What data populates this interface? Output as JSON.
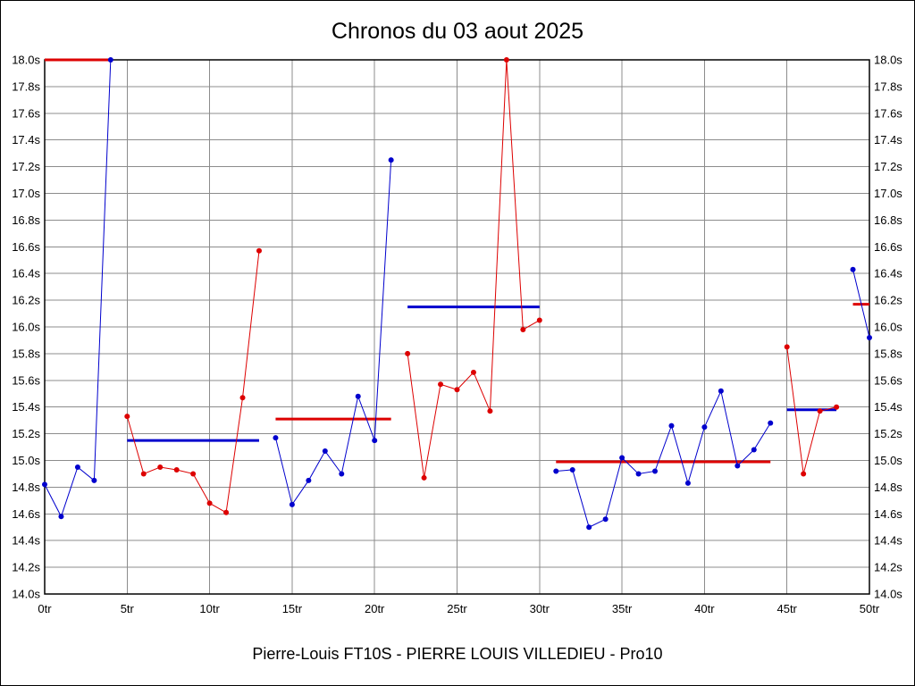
{
  "title": "Chronos du 03 aout 2025",
  "footer": "Pierre-Louis FT10S - PIERRE LOUIS VILLEDIEU - Pro10",
  "chart_data": {
    "type": "line",
    "title": "Chronos du 03 aout 2025",
    "xlabel": "",
    "ylabel": "",
    "x_unit_suffix": "tr",
    "y_unit_suffix": "s",
    "xlim": [
      0,
      50
    ],
    "ylim": [
      14.0,
      18.0
    ],
    "x_tick_step": 5,
    "y_tick_step": 0.2,
    "grid": true,
    "y_labels_both_sides": true,
    "legend_position": "none",
    "colors": {
      "blue": "#0000cd",
      "red": "#dd0000",
      "grid": "#8c8c8c",
      "axis": "#000000"
    },
    "stints": [
      {
        "color": "blue",
        "start_lap": 0,
        "laps": [
          14.82,
          14.58,
          14.95,
          14.85,
          18.0
        ],
        "avg_line": {
          "color": "red",
          "value": 18.0
        }
      },
      {
        "color": "red",
        "start_lap": 5,
        "laps": [
          15.33,
          14.9,
          14.95,
          14.93,
          14.9,
          14.68,
          14.61,
          15.47,
          16.57
        ],
        "avg_line": {
          "color": "blue",
          "value": 15.15
        }
      },
      {
        "color": "blue",
        "start_lap": 14,
        "laps": [
          15.17,
          14.67,
          14.85,
          15.07,
          14.9,
          15.48,
          15.15,
          17.25
        ],
        "avg_line": {
          "color": "red",
          "value": 15.31
        }
      },
      {
        "color": "red",
        "start_lap": 22,
        "laps": [
          15.8,
          14.87,
          15.57,
          15.53,
          15.66,
          15.37,
          18.0,
          15.98,
          16.05
        ],
        "avg_line": {
          "color": "blue",
          "value": 16.15
        }
      },
      {
        "color": "blue",
        "start_lap": 31,
        "laps": [
          14.92,
          14.93,
          14.5,
          14.56,
          15.02,
          14.9,
          14.92,
          15.26,
          14.83,
          15.25,
          15.52,
          14.96,
          15.08,
          15.28
        ],
        "avg_line": {
          "color": "red",
          "value": 14.99
        }
      },
      {
        "color": "red",
        "start_lap": 45,
        "laps": [
          15.85,
          14.9,
          15.37,
          15.4
        ],
        "avg_line": {
          "color": "blue",
          "value": 15.38
        }
      },
      {
        "color": "blue",
        "start_lap": 49,
        "laps": [
          16.43,
          15.92
        ],
        "avg_line": {
          "color": "red",
          "value": 16.17
        }
      }
    ]
  }
}
